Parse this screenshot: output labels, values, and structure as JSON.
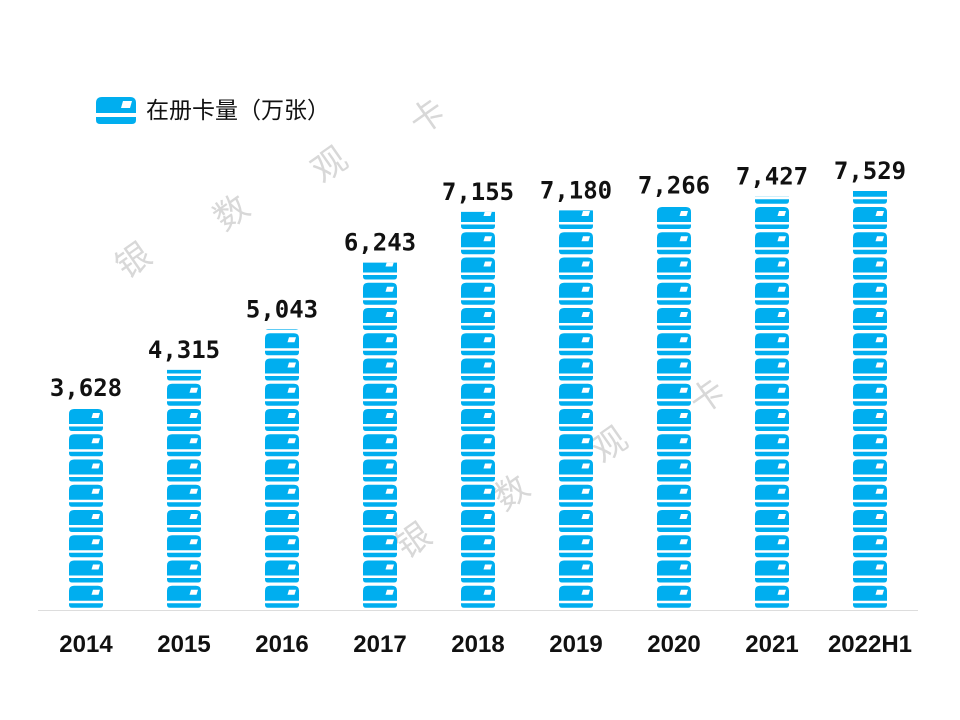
{
  "chart_data": {
    "type": "bar",
    "style": "pictogram-card-stack",
    "categories": [
      "2014",
      "2015",
      "2016",
      "2017",
      "2018",
      "2019",
      "2020",
      "2021",
      "2022H1"
    ],
    "series": [
      {
        "name": "在册卡量（万张）",
        "values": [
          3628,
          4315,
          5043,
          6243,
          7155,
          7180,
          7266,
          7427,
          7529
        ]
      }
    ],
    "value_labels": [
      "3,628",
      "4,315",
      "5,043",
      "6,243",
      "7,155",
      "7,180",
      "7,266",
      "7,427",
      "7,529"
    ],
    "ylim": [
      0,
      7529
    ],
    "grid": false,
    "legend_position": "top-left",
    "color": "#00aeef",
    "watermark": [
      "银",
      "数",
      "观",
      "卡"
    ]
  }
}
